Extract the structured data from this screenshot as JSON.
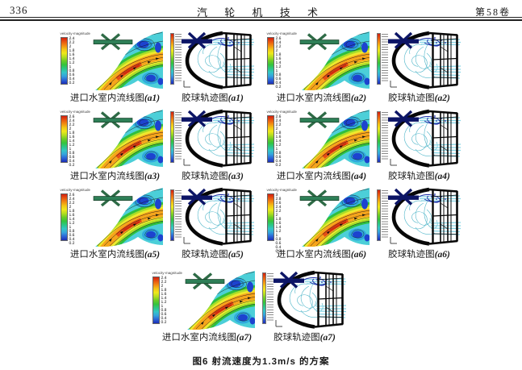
{
  "header": {
    "page_number": "336",
    "journal_title": "汽 轮 机 技 术",
    "volume": "第58卷"
  },
  "figure_caption": "图6  射流速度为1.3m/s 的方案",
  "colors": {
    "colorbar_rainbow": [
      "#d21f0e",
      "#e85510",
      "#f28b12",
      "#f3c515",
      "#efe81c",
      "#b5dd20",
      "#6ccc26",
      "#35c43c",
      "#2bc685",
      "#33c6c6",
      "#35a3dc",
      "#2b64d8",
      "#1b2cb4"
    ],
    "trajectory_line": "#4fb6c9",
    "inlet_pipe_flow": "#2e7f57",
    "inlet_pipe_traj": "#0c1566"
  },
  "panels": [
    {
      "id": "a1",
      "colorbar_title": "velocity-magnitude",
      "flow_label": "进口水室内流线图",
      "flow_tag": "(a1)",
      "traj_label": "胶球轨迹图",
      "traj_tag": "(a1)",
      "ticks": [
        "2.4",
        "2.2",
        "2",
        "1.8",
        "1.6",
        "1.4",
        "1.2",
        "1",
        "0.8",
        "0.6",
        "0.4",
        "0.2"
      ]
    },
    {
      "id": "a2",
      "colorbar_title": "velocity-magnitude",
      "flow_label": "进口水室内流线图",
      "flow_tag": "(a2)",
      "traj_label": "胶球轨迹图",
      "traj_tag": "(a2)",
      "ticks": [
        "2.6",
        "2.4",
        "2.2",
        "2",
        "1.8",
        "1.6",
        "1.4",
        "1.2",
        "1",
        "0.8",
        "0.6",
        "0.4",
        "0.2"
      ]
    },
    {
      "id": "a3",
      "colorbar_title": "velocity-magnitude",
      "flow_label": "进口水室内流线图",
      "flow_tag": "(a3)",
      "traj_label": "胶球轨迹图",
      "traj_tag": "(a3)",
      "ticks": [
        "2.6",
        "2.4",
        "2.2",
        "2",
        "1.8",
        "1.6",
        "1.4",
        "1.2",
        "1",
        "0.8",
        "0.6",
        "0.4",
        "0.2"
      ]
    },
    {
      "id": "a4",
      "colorbar_title": "velocity-magnitude",
      "flow_label": "进口水室内流线图",
      "flow_tag": "(a4)",
      "traj_label": "胶球轨迹图",
      "traj_tag": "(a4)",
      "ticks": [
        "2.6",
        "2.4",
        "2.2",
        "2",
        "1.8",
        "1.6",
        "1.4",
        "1.2",
        "1",
        "0.8",
        "0.6",
        "0.4",
        "0.2"
      ]
    },
    {
      "id": "a5",
      "colorbar_title": "velocity-magnitude",
      "flow_label": "进口水室内流线图",
      "flow_tag": "(a5)",
      "traj_label": "胶球轨迹图",
      "traj_tag": "(a5)",
      "ticks": [
        "2.6",
        "2.4",
        "2.2",
        "2",
        "1.8",
        "1.6",
        "1.4",
        "1.2",
        "1",
        "0.8",
        "0.6",
        "0.4",
        "0.2"
      ]
    },
    {
      "id": "a6",
      "colorbar_title": "velocity-magnitude",
      "flow_label": "进口水室内流线图",
      "flow_tag": "(a6)",
      "traj_label": "胶球轨迹图",
      "traj_tag": "(a6)",
      "ticks": [
        "3",
        "2.8",
        "2.6",
        "2.4",
        "2.2",
        "2",
        "1.8",
        "1.6",
        "1.4",
        "1.2",
        "1",
        "0.8",
        "0.6",
        "0.4",
        "0.2"
      ]
    },
    {
      "id": "a7",
      "colorbar_title": "velocity-magnitude",
      "flow_label": "进口水室内流线图",
      "flow_tag": "(a7)",
      "traj_label": "胶球轨迹图",
      "traj_tag": "(a7)",
      "ticks": [
        "2.4",
        "2.2",
        "2",
        "1.8",
        "1.6",
        "1.4",
        "1.2",
        "1",
        "0.8",
        "0.6",
        "0.4",
        "0.2"
      ]
    }
  ]
}
